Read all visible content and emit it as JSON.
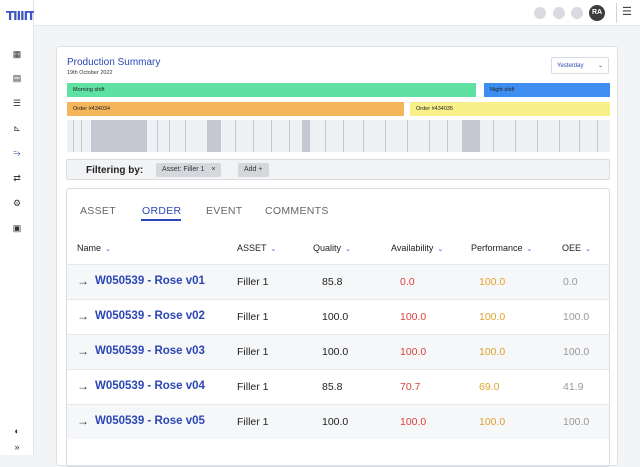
{
  "app": {
    "logo": "TIIIIT"
  },
  "sidebar": {
    "icons": [
      "dashboard-icon",
      "document-icon",
      "list-icon",
      "chart-icon",
      "trend-icon",
      "shift-icon",
      "settings-icon",
      "calendar-icon",
      "theme-icon",
      "expand-icon"
    ],
    "expand_label": "»"
  },
  "topbar": {
    "avatar_initials": "RA"
  },
  "summary": {
    "title": "Production Summary",
    "date": "19th October 2022",
    "range_select": {
      "value": "Yesterday"
    }
  },
  "shifts": [
    {
      "label": "Morning shift",
      "color": "#5ee1a2"
    },
    {
      "label": "Night shift",
      "color": "#3d8ef0"
    }
  ],
  "orders": [
    {
      "label": "Order #434034",
      "color": "#f5b55a"
    },
    {
      "label": "Order #434035",
      "color": "#f9f08a"
    }
  ],
  "filter": {
    "label": "Filtering by:",
    "chip": "Asset: Filler 1",
    "chip_remove": "×",
    "add_label": "Add +"
  },
  "tabs": [
    "ASSET",
    "ORDER",
    "EVENT",
    "COMMENTS"
  ],
  "active_tab": "ORDER",
  "table": {
    "headers": [
      "Name",
      "ASSET",
      "Quality",
      "Availability",
      "Performance",
      "OEE"
    ],
    "rows": [
      {
        "name": "W050539 - Rose v01",
        "asset": "Filler 1",
        "quality": "85.8",
        "availability": "0.0",
        "performance": "100.0",
        "oee": "0.0"
      },
      {
        "name": "W050539 - Rose v02",
        "asset": "Filler 1",
        "quality": "100.0",
        "availability": "100.0",
        "performance": "100.0",
        "oee": "100.0"
      },
      {
        "name": "W050539 - Rose v03",
        "asset": "Filler 1",
        "quality": "100.0",
        "availability": "100.0",
        "performance": "100.0",
        "oee": "100.0"
      },
      {
        "name": "W050539 - Rose v04",
        "asset": "Filler 1",
        "quality": "85.8",
        "availability": "70.7",
        "performance": "69.0",
        "oee": "41.9"
      },
      {
        "name": "W050539 - Rose v05",
        "asset": "Filler 1",
        "quality": "100.0",
        "availability": "100.0",
        "performance": "100.0",
        "oee": "100.0"
      }
    ]
  },
  "colors": {
    "accent": "#2b47b5",
    "availability": "#d9423c",
    "performance": "#e0a22a",
    "oee": "#999999"
  }
}
